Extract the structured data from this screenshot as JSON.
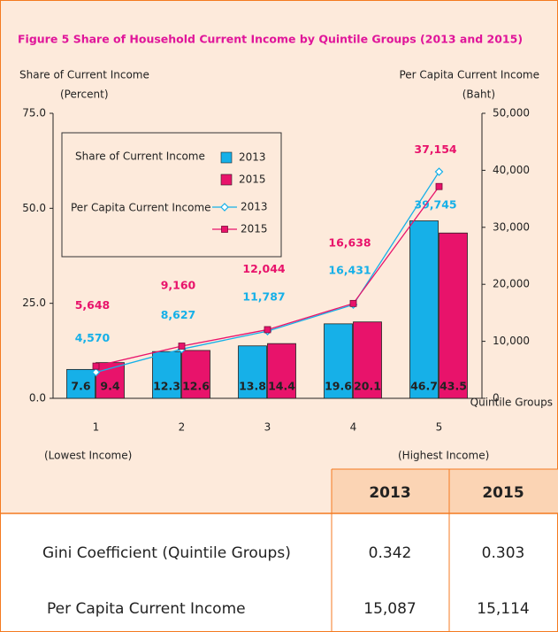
{
  "chart_data": {
    "type": "bar_line",
    "title": "Figure  5  Share of Household Current Income by Quintile Groups (2013 and 2015)",
    "y_label": [
      "Share of Current Income",
      "(Percent)"
    ],
    "y2_label": [
      "Per Capita Current Income",
      "(Baht)"
    ],
    "x_label": "Quintile Groups",
    "annotations": [
      "(Lowest Income)",
      "(Highest Income)"
    ],
    "categories": [
      "1",
      "2",
      "3",
      "4",
      "5"
    ],
    "legend_groups": [
      "Share of Current Income",
      "Per Capita Current Income"
    ],
    "series": [
      {
        "name": "2013",
        "kind": "bar",
        "color": "#16b0e8",
        "values": [
          7.6,
          12.3,
          13.8,
          19.6,
          46.7
        ]
      },
      {
        "name": "2015",
        "kind": "bar",
        "color": "#e8136b",
        "values": [
          9.4,
          12.6,
          14.4,
          20.1,
          43.5
        ]
      },
      {
        "name": "2013",
        "kind": "line",
        "axis": "y2",
        "marker": "diamond",
        "color": "#16b0e8",
        "values": [
          4570,
          8627,
          11787,
          16431,
          39745
        ],
        "value_labels": [
          "4,570",
          "8,627",
          "11,787",
          "16,431",
          "39,745"
        ]
      },
      {
        "name": "2015",
        "kind": "line",
        "axis": "y2",
        "marker": "square",
        "color": "#e8136b",
        "values": [
          5648,
          9160,
          12044,
          16638,
          37154
        ],
        "value_labels": [
          "5,648",
          "9,160",
          "12,044",
          "16,638",
          "37,154"
        ]
      }
    ],
    "ylim": [
      0,
      75
    ],
    "yticks": [
      {
        "value": 0,
        "label": "0.0"
      },
      {
        "value": 25,
        "label": "25.0"
      },
      {
        "value": 50,
        "label": "50.0"
      },
      {
        "value": 75,
        "label": "75.0"
      }
    ],
    "y2lim": [
      0,
      50000
    ],
    "y2ticks": [
      0,
      {
        "value": 10000,
        "label": "10,000"
      },
      {
        "value": 20000,
        "label": "20,000"
      },
      {
        "value": 30000,
        "label": "30,000"
      },
      {
        "value": 40000,
        "label": "40,000"
      },
      {
        "value": 50000,
        "label": "50,000"
      }
    ]
  },
  "table": {
    "header": [
      "2013",
      "2015"
    ],
    "rows": [
      [
        "Gini Coefficient (Quintile Groups)",
        "0.342",
        "0.303"
      ],
      [
        "Per Capita Current Income",
        "15,087",
        "15,114"
      ]
    ]
  }
}
